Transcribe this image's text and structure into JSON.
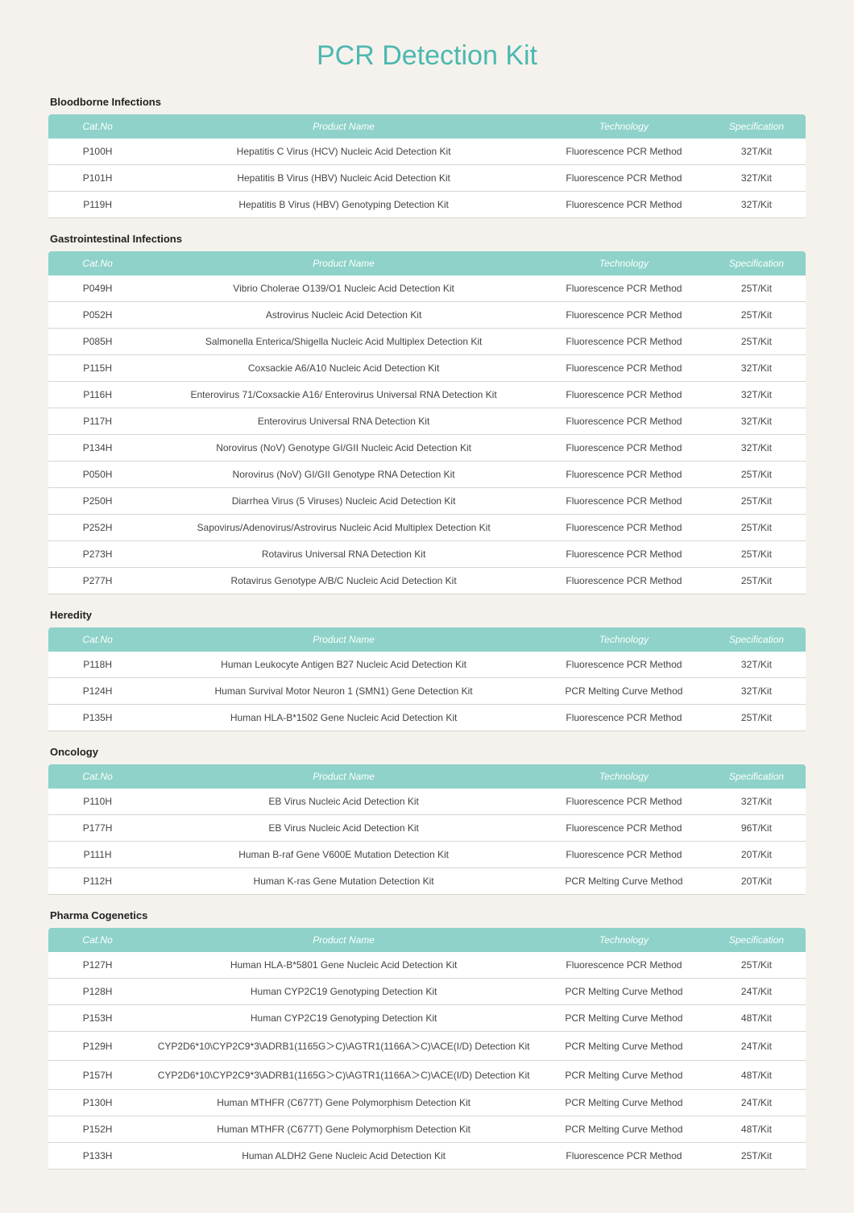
{
  "title": "PCR Detection Kit",
  "columns": [
    "Cat.No",
    "Product Name",
    "Technology",
    "Specification"
  ],
  "sections": [
    {
      "title": "Bloodborne Infections",
      "rows": [
        [
          "P100H",
          "Hepatitis C Virus (HCV) Nucleic Acid Detection Kit",
          "Fluorescence PCR Method",
          "32T/Kit"
        ],
        [
          "P101H",
          "Hepatitis B Virus (HBV) Nucleic Acid Detection Kit",
          "Fluorescence PCR Method",
          "32T/Kit"
        ],
        [
          "P119H",
          "Hepatitis B Virus (HBV) Genotyping Detection Kit",
          "Fluorescence PCR Method",
          "32T/Kit"
        ]
      ]
    },
    {
      "title": "Gastrointestinal Infections",
      "rows": [
        [
          "P049H",
          "Vibrio Cholerae O139/O1 Nucleic Acid Detection Kit",
          "Fluorescence PCR Method",
          "25T/Kit"
        ],
        [
          "P052H",
          "Astrovirus Nucleic Acid Detection Kit",
          "Fluorescence PCR Method",
          "25T/Kit"
        ],
        [
          "P085H",
          "Salmonella Enterica/Shigella Nucleic Acid Multiplex Detection Kit",
          "Fluorescence PCR Method",
          "25T/Kit"
        ],
        [
          "P115H",
          "Coxsackie A6/A10 Nucleic Acid Detection Kit",
          "Fluorescence PCR Method",
          "32T/Kit"
        ],
        [
          "P116H",
          "Enterovirus 71/Coxsackie A16/ Enterovirus Universal RNA Detection Kit",
          "Fluorescence PCR Method",
          "32T/Kit"
        ],
        [
          "P117H",
          "Enterovirus Universal RNA Detection Kit",
          "Fluorescence PCR Method",
          "32T/Kit"
        ],
        [
          "P134H",
          "Norovirus (NoV) Genotype GI/GII Nucleic Acid Detection Kit",
          "Fluorescence PCR Method",
          "32T/Kit"
        ],
        [
          "P050H",
          "Norovirus (NoV) GI/GII Genotype RNA Detection Kit",
          "Fluorescence PCR Method",
          "25T/Kit"
        ],
        [
          "P250H",
          "Diarrhea Virus (5 Viruses) Nucleic Acid Detection Kit",
          "Fluorescence PCR Method",
          "25T/Kit"
        ],
        [
          "P252H",
          "Sapovirus/Adenovirus/Astrovirus Nucleic Acid Multiplex Detection Kit",
          "Fluorescence PCR Method",
          "25T/Kit"
        ],
        [
          "P273H",
          "Rotavirus Universal RNA Detection Kit",
          "Fluorescence PCR Method",
          "25T/Kit"
        ],
        [
          "P277H",
          "Rotavirus Genotype A/B/C Nucleic Acid Detection Kit",
          "Fluorescence PCR Method",
          "25T/Kit"
        ]
      ]
    },
    {
      "title": "Heredity",
      "rows": [
        [
          "P118H",
          "Human Leukocyte Antigen B27 Nucleic Acid Detection Kit",
          "Fluorescence PCR Method",
          "32T/Kit"
        ],
        [
          "P124H",
          "Human Survival Motor Neuron 1 (SMN1) Gene Detection Kit",
          "PCR Melting Curve Method",
          "32T/Kit"
        ],
        [
          "P135H",
          "Human HLA-B*1502 Gene Nucleic Acid Detection Kit",
          "Fluorescence PCR Method",
          "25T/Kit"
        ]
      ]
    },
    {
      "title": "Oncology",
      "rows": [
        [
          "P110H",
          "EB Virus Nucleic Acid Detection Kit",
          "Fluorescence PCR Method",
          "32T/Kit"
        ],
        [
          "P177H",
          "EB Virus Nucleic Acid Detection Kit",
          "Fluorescence PCR Method",
          "96T/Kit"
        ],
        [
          "P111H",
          "Human B-raf Gene V600E Mutation Detection Kit",
          "Fluorescence PCR Method",
          "20T/Kit"
        ],
        [
          "P112H",
          "Human K-ras Gene Mutation Detection Kit",
          "PCR Melting Curve Method",
          "20T/Kit"
        ]
      ]
    },
    {
      "title": "Pharma Cogenetics",
      "rows": [
        [
          "P127H",
          "Human HLA-B*5801 Gene Nucleic Acid Detection Kit",
          "Fluorescence PCR Method",
          "25T/Kit"
        ],
        [
          "P128H",
          "Human CYP2C19 Genotyping Detection Kit",
          "PCR Melting Curve Method",
          "24T/Kit"
        ],
        [
          "P153H",
          "Human CYP2C19 Genotyping Detection Kit",
          "PCR Melting Curve Method",
          "48T/Kit"
        ],
        [
          "P129H",
          "CYP2D6*10\\CYP2C9*3\\ADRB1(1165G＞C)\\AGTR1(1166A＞C)\\ACE(I/D) Detection Kit",
          "PCR Melting Curve Method",
          "24T/Kit"
        ],
        [
          "P157H",
          "CYP2D6*10\\CYP2C9*3\\ADRB1(1165G＞C)\\AGTR1(1166A＞C)\\ACE(I/D) Detection Kit",
          "PCR Melting Curve Method",
          "48T/Kit"
        ],
        [
          "P130H",
          "Human MTHFR (C677T) Gene Polymorphism Detection Kit",
          "PCR Melting Curve Method",
          "24T/Kit"
        ],
        [
          "P152H",
          "Human MTHFR (C677T) Gene Polymorphism Detection Kit",
          "PCR Melting Curve Method",
          "48T/Kit"
        ],
        [
          "P133H",
          "Human ALDH2 Gene Nucleic Acid Detection Kit",
          "Fluorescence PCR Method",
          "25T/Kit"
        ]
      ]
    }
  ]
}
